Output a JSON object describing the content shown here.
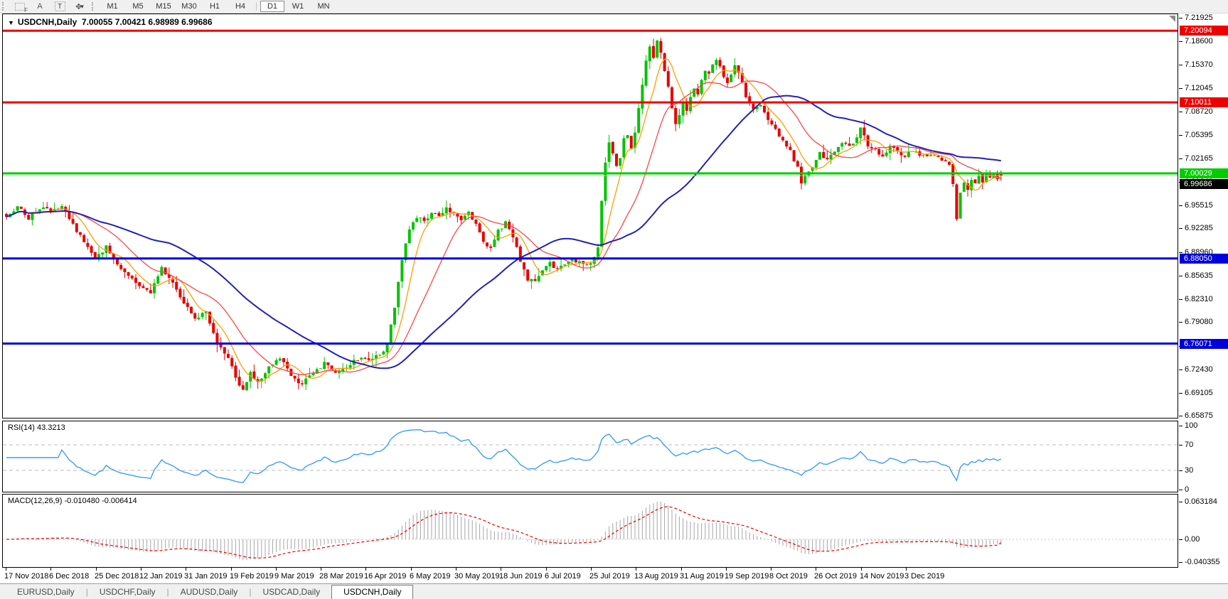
{
  "toolbar": {
    "left_icons": [
      {
        "name": "fibonacci-tool-icon",
        "glyph": "F"
      },
      {
        "name": "text-label-tool-icon",
        "glyph": "A"
      },
      {
        "name": "text-tool-icon",
        "glyph": "T"
      },
      {
        "name": "arrows-tool-icon",
        "glyph": "✥"
      },
      {
        "name": "dropdown-caret-icon",
        "glyph": "▾"
      }
    ],
    "timeframes": [
      "M1",
      "M5",
      "M15",
      "M30",
      "H1",
      "H4",
      "D1",
      "W1",
      "MN"
    ],
    "active_timeframe": "D1"
  },
  "chart": {
    "title": {
      "symbol": "USDCNH,Daily",
      "open": "7.00055",
      "high": "7.00421",
      "low": "6.98989",
      "close": "6.99686"
    },
    "price_axis": {
      "max_price": 7.21925,
      "min_price": 6.65875,
      "ticks": [
        "7.21925",
        "7.18600",
        "7.15370",
        "7.12045",
        "7.08720",
        "7.05395",
        "7.02165",
        "6.98840",
        "6.95515",
        "6.92285",
        "6.88960",
        "6.85635",
        "6.82310",
        "6.79080",
        "6.75755",
        "6.72430",
        "6.69105",
        "6.65875"
      ]
    },
    "levels": [
      {
        "label": "7.20094",
        "price": 7.20094,
        "bg": "#ee0000",
        "line": "#ee0000",
        "width": 3,
        "kind": "resistance"
      },
      {
        "label": "7.10011",
        "price": 7.10011,
        "bg": "#ee0000",
        "line": "#ee0000",
        "width": 3,
        "kind": "resistance"
      },
      {
        "label": "7.00029",
        "price": 7.00029,
        "bg": "#00cc00",
        "line": "#00cc00",
        "width": 3,
        "kind": "support"
      },
      {
        "label": "6.99686",
        "price": 6.99686,
        "bg": "#000000",
        "line": "#bdbdbd",
        "width": 1,
        "kind": "current-price"
      },
      {
        "label": "6.88050",
        "price": 6.8805,
        "bg": "#0000dd",
        "line": "#0000dd",
        "width": 3,
        "kind": "support"
      },
      {
        "label": "6.76071",
        "price": 6.76071,
        "bg": "#0000dd",
        "line": "#0000dd",
        "width": 3,
        "kind": "support"
      }
    ],
    "colors": {
      "candle_up": "#00c400",
      "candle_down": "#e60000",
      "ma_fast": "#ff9c00",
      "ma_medium": "#ff4545",
      "ma_slow": "#2121b4"
    }
  },
  "chart_data": {
    "price_panel": {
      "type": "candlestick",
      "symbol": "USDCNH",
      "timeframe": "Daily",
      "num_candles": 270,
      "price_range": [
        6.65875,
        7.21925
      ],
      "last_candle": {
        "open": 7.00055,
        "high": 7.00421,
        "low": 6.98989,
        "close": 6.99686
      },
      "horizontal_levels": [
        7.20094,
        7.10011,
        7.00029,
        6.8805,
        6.76071
      ],
      "current_price": 6.99686,
      "moving_averages": [
        {
          "name": "fast",
          "period": 7,
          "color": "#ff9c00",
          "stroke": 1.3
        },
        {
          "name": "medium",
          "period": 18,
          "color": "#ff4545",
          "stroke": 1.3
        },
        {
          "name": "slow",
          "period": 45,
          "color": "#2121b4",
          "stroke": 2
        }
      ],
      "close_path_anchors": [
        [
          0,
          6.942
        ],
        [
          3,
          6.953
        ],
        [
          6,
          6.938
        ],
        [
          9,
          6.952
        ],
        [
          12,
          6.946
        ],
        [
          15,
          6.952
        ],
        [
          18,
          6.928
        ],
        [
          21,
          6.905
        ],
        [
          24,
          6.878
        ],
        [
          27,
          6.898
        ],
        [
          30,
          6.872
        ],
        [
          33,
          6.858
        ],
        [
          36,
          6.842
        ],
        [
          39,
          6.834
        ],
        [
          42,
          6.866
        ],
        [
          45,
          6.845
        ],
        [
          48,
          6.82
        ],
        [
          51,
          6.795
        ],
        [
          54,
          6.806
        ],
        [
          57,
          6.762
        ],
        [
          60,
          6.742
        ],
        [
          62,
          6.712
        ],
        [
          64,
          6.697
        ],
        [
          66,
          6.718
        ],
        [
          68,
          6.705
        ],
        [
          71,
          6.728
        ],
        [
          74,
          6.74
        ],
        [
          77,
          6.715
        ],
        [
          80,
          6.703
        ],
        [
          83,
          6.722
        ],
        [
          86,
          6.732
        ],
        [
          89,
          6.72
        ],
        [
          92,
          6.729
        ],
        [
          95,
          6.74
        ],
        [
          98,
          6.735
        ],
        [
          101,
          6.745
        ],
        [
          103,
          6.76
        ],
        [
          105,
          6.81
        ],
        [
          107,
          6.88
        ],
        [
          109,
          6.922
        ],
        [
          111,
          6.94
        ],
        [
          113,
          6.932
        ],
        [
          115,
          6.945
        ],
        [
          117,
          6.938
        ],
        [
          119,
          6.952
        ],
        [
          121,
          6.942
        ],
        [
          123,
          6.933
        ],
        [
          125,
          6.945
        ],
        [
          127,
          6.93
        ],
        [
          129,
          6.904
        ],
        [
          131,
          6.896
        ],
        [
          133,
          6.92
        ],
        [
          135,
          6.93
        ],
        [
          137,
          6.912
        ],
        [
          139,
          6.878
        ],
        [
          141,
          6.852
        ],
        [
          143,
          6.846
        ],
        [
          145,
          6.862
        ],
        [
          147,
          6.873
        ],
        [
          149,
          6.865
        ],
        [
          151,
          6.872
        ],
        [
          153,
          6.88
        ],
        [
          155,
          6.874
        ],
        [
          157,
          6.87
        ],
        [
          159,
          6.882
        ],
        [
          160,
          6.895
        ],
        [
          161,
          6.962
        ],
        [
          162,
          7.018
        ],
        [
          163,
          7.042
        ],
        [
          164,
          7.03
        ],
        [
          165,
          7.008
        ],
        [
          166,
          7.022
        ],
        [
          167,
          7.048
        ],
        [
          168,
          7.055
        ],
        [
          169,
          7.038
        ],
        [
          170,
          7.06
        ],
        [
          171,
          7.092
        ],
        [
          172,
          7.125
        ],
        [
          173,
          7.16
        ],
        [
          174,
          7.178
        ],
        [
          175,
          7.162
        ],
        [
          176,
          7.185
        ],
        [
          177,
          7.168
        ],
        [
          178,
          7.142
        ],
        [
          179,
          7.12
        ],
        [
          180,
          7.095
        ],
        [
          181,
          7.068
        ],
        [
          182,
          7.082
        ],
        [
          183,
          7.098
        ],
        [
          184,
          7.088
        ],
        [
          185,
          7.108
        ],
        [
          186,
          7.122
        ],
        [
          187,
          7.112
        ],
        [
          188,
          7.13
        ],
        [
          189,
          7.145
        ],
        [
          190,
          7.14
        ],
        [
          191,
          7.152
        ],
        [
          192,
          7.16
        ],
        [
          193,
          7.148
        ],
        [
          194,
          7.135
        ],
        [
          195,
          7.128
        ],
        [
          196,
          7.14
        ],
        [
          197,
          7.15
        ],
        [
          198,
          7.142
        ],
        [
          199,
          7.128
        ],
        [
          200,
          7.108
        ],
        [
          202,
          7.092
        ],
        [
          204,
          7.098
        ],
        [
          206,
          7.078
        ],
        [
          208,
          7.062
        ],
        [
          210,
          7.048
        ],
        [
          212,
          7.032
        ],
        [
          214,
          7.008
        ],
        [
          215,
          6.988
        ],
        [
          216,
          6.995
        ],
        [
          218,
          7.012
        ],
        [
          220,
          7.028
        ],
        [
          222,
          7.018
        ],
        [
          224,
          7.032
        ],
        [
          226,
          7.042
        ],
        [
          228,
          7.038
        ],
        [
          230,
          7.052
        ],
        [
          231,
          7.065
        ],
        [
          232,
          7.052
        ],
        [
          233,
          7.04
        ],
        [
          235,
          7.032
        ],
        [
          237,
          7.026
        ],
        [
          239,
          7.038
        ],
        [
          241,
          7.03
        ],
        [
          243,
          7.026
        ],
        [
          245,
          7.032
        ],
        [
          247,
          7.028
        ],
        [
          249,
          7.022
        ],
        [
          251,
          7.026
        ],
        [
          253,
          7.02
        ],
        [
          255,
          7.012
        ],
        [
          256,
          6.988
        ],
        [
          257,
          6.935
        ],
        [
          258,
          6.972
        ],
        [
          259,
          6.986
        ],
        [
          260,
          6.98
        ],
        [
          261,
          6.992
        ],
        [
          262,
          6.985
        ],
        [
          263,
          6.996
        ],
        [
          264,
          6.988
        ],
        [
          265,
          6.998
        ],
        [
          266,
          6.992
        ],
        [
          267,
          6.998
        ],
        [
          268,
          6.994
        ],
        [
          269,
          6.997
        ]
      ],
      "x_labels": [
        "17 Nov 2018",
        "6 Dec 2018",
        "25 Dec 2018",
        "12 Jan 2019",
        "31 Jan 2019",
        "19 Feb 2019",
        "9 Mar 2019",
        "28 Mar 2019",
        "16 Apr 2019",
        "6 May 2019",
        "30 May 2019",
        "18 Jun 2019",
        "6 Jul 2019",
        "25 Jul 2019",
        "13 Aug 2019",
        "31 Aug 2019",
        "19 Sep 2019",
        "8 Oct 2019",
        "26 Oct 2019",
        "14 Nov 2019",
        "3 Dec 2019"
      ]
    },
    "rsi_panel": {
      "type": "line",
      "indicator": "RSI",
      "period": 14,
      "current_value": 43.3213,
      "derived_from": "price_panel closes",
      "levels": [
        70,
        30
      ],
      "scale_ticks": [
        "100",
        "70",
        "30",
        "0"
      ],
      "ylim": [
        0,
        100
      ],
      "color": "#3a9ff2"
    },
    "macd_panel": {
      "type": "bar",
      "indicator": "MACD",
      "params": [
        12,
        26,
        9
      ],
      "main_value": -0.01048,
      "signal_value": -0.006414,
      "derived_from": "price_panel closes",
      "scale_ticks": [
        "0.063184",
        "0.00",
        "-0.040355"
      ],
      "histogram_color": "#a6a6a6",
      "signal_color": "#ee0000"
    }
  },
  "rsi": {
    "label": "RSI(14) 43.3213"
  },
  "macd": {
    "label": "MACD(12,26,9) -0.010480 -0.006414"
  },
  "tabs": {
    "items": [
      "EURUSD,Daily",
      "USDCHF,Daily",
      "AUDUSD,Daily",
      "USDCAD,Daily",
      "USDCNH,Daily"
    ],
    "active": "USDCNH,Daily"
  }
}
